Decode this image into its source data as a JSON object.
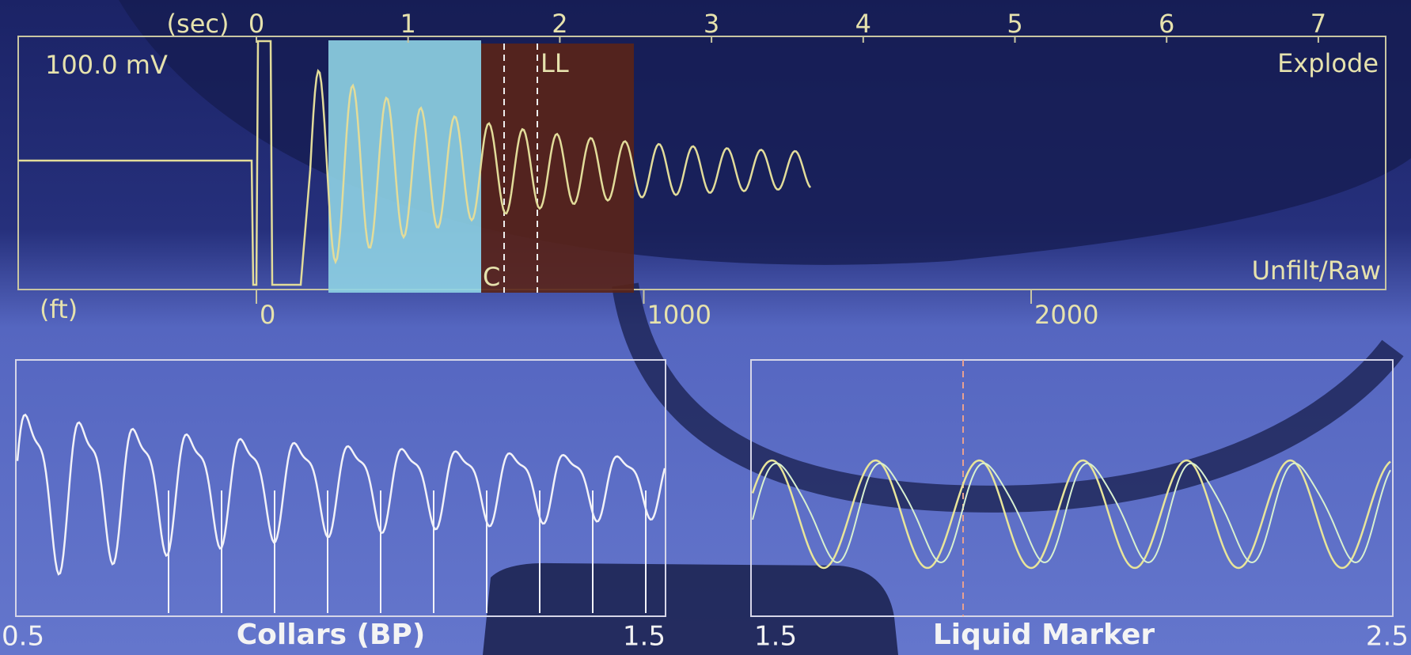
{
  "top_panel": {
    "time_unit": "(sec)",
    "time_ticks": [
      0,
      1,
      2,
      3,
      4,
      5,
      6,
      7
    ],
    "scale": "100.0 mV",
    "mode": "Explode",
    "filter": "Unfilt/Raw",
    "marker": "LL",
    "marker_c": "C"
  },
  "depth_axis": {
    "unit": "(ft)",
    "ticks": [
      0,
      1000,
      2000
    ]
  },
  "collars_panel": {
    "title": "Collars (BP)",
    "start": 0.5,
    "end": 1.5
  },
  "liquid_panel": {
    "title": "Liquid Marker",
    "start": 1.5,
    "end": 2.5
  }
}
